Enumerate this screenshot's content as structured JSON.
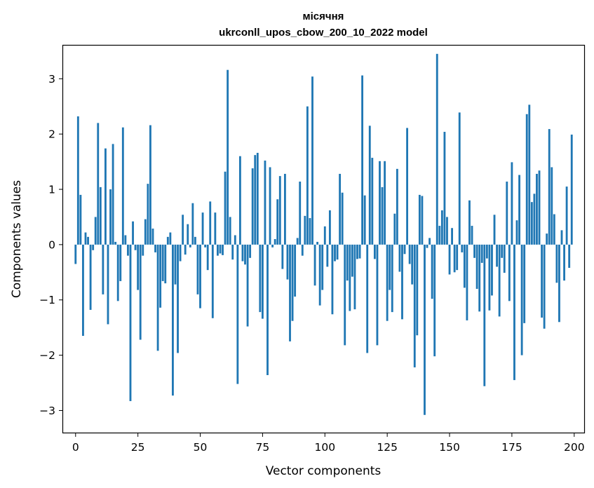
{
  "chart_data": {
    "type": "bar",
    "title": "місячня",
    "subtitle": "ukrconll_upos_cbow_200_10_2022 model",
    "xlabel": "Vector components",
    "ylabel": "Components values",
    "xlim": [
      -5,
      204
    ],
    "ylim": [
      -3.4,
      3.6
    ],
    "xticks": [
      0,
      25,
      50,
      75,
      100,
      125,
      150,
      175,
      200
    ],
    "yticks": [
      -3,
      -2,
      -1,
      0,
      1,
      2,
      3
    ],
    "xtick_labels": [
      "0",
      "25",
      "50",
      "75",
      "100",
      "125",
      "150",
      "175",
      "200"
    ],
    "ytick_labels": [
      "−3",
      "−2",
      "−1",
      "0",
      "1",
      "2",
      "3"
    ],
    "grid": false,
    "bar_color": "#1f77b4",
    "x": [
      0,
      1,
      2,
      3,
      4,
      5,
      6,
      7,
      8,
      9,
      10,
      11,
      12,
      13,
      14,
      15,
      16,
      17,
      18,
      19,
      20,
      21,
      22,
      23,
      24,
      25,
      26,
      27,
      28,
      29,
      30,
      31,
      32,
      33,
      34,
      35,
      36,
      37,
      38,
      39,
      40,
      41,
      42,
      43,
      44,
      45,
      46,
      47,
      48,
      49,
      50,
      51,
      52,
      53,
      54,
      55,
      56,
      57,
      58,
      59,
      60,
      61,
      62,
      63,
      64,
      65,
      66,
      67,
      68,
      69,
      70,
      71,
      72,
      73,
      74,
      75,
      76,
      77,
      78,
      79,
      80,
      81,
      82,
      83,
      84,
      85,
      86,
      87,
      88,
      89,
      90,
      91,
      92,
      93,
      94,
      95,
      96,
      97,
      98,
      99,
      100,
      101,
      102,
      103,
      104,
      105,
      106,
      107,
      108,
      109,
      110,
      111,
      112,
      113,
      114,
      115,
      116,
      117,
      118,
      119,
      120,
      121,
      122,
      123,
      124,
      125,
      126,
      127,
      128,
      129,
      130,
      131,
      132,
      133,
      134,
      135,
      136,
      137,
      138,
      139,
      140,
      141,
      142,
      143,
      144,
      145,
      146,
      147,
      148,
      149,
      150,
      151,
      152,
      153,
      154,
      155,
      156,
      157,
      158,
      159,
      160,
      161,
      162,
      163,
      164,
      165,
      166,
      167,
      168,
      169,
      170,
      171,
      172,
      173,
      174,
      175,
      176,
      177,
      178,
      179,
      180,
      181,
      182,
      183,
      184,
      185,
      186,
      187,
      188,
      189,
      190,
      191,
      192,
      193,
      194,
      195,
      196,
      197,
      198,
      199
    ],
    "values": [
      -0.35,
      2.32,
      0.9,
      -1.65,
      0.22,
      0.14,
      -1.18,
      -0.1,
      0.5,
      2.2,
      1.04,
      -0.9,
      1.74,
      -1.44,
      1.0,
      1.82,
      0.05,
      -1.02,
      -0.66,
      2.12,
      0.17,
      -0.2,
      -2.83,
      0.42,
      -0.1,
      -0.82,
      -1.72,
      -0.2,
      0.46,
      1.1,
      2.16,
      0.29,
      -0.14,
      -1.92,
      -1.14,
      -0.66,
      -0.7,
      0.14,
      0.22,
      -2.73,
      -0.72,
      -1.96,
      -0.3,
      0.54,
      -0.18,
      0.37,
      -0.05,
      0.75,
      0.14,
      -0.9,
      -1.15,
      0.58,
      -0.05,
      -0.46,
      0.78,
      -1.33,
      0.58,
      -0.2,
      -0.16,
      -0.19,
      1.32,
      3.16,
      0.5,
      -0.27,
      0.17,
      -2.52,
      1.6,
      -0.3,
      -0.36,
      -1.48,
      -0.24,
      1.38,
      1.62,
      1.66,
      -1.22,
      -1.34,
      1.52,
      -2.36,
      1.4,
      -0.05,
      0.1,
      0.82,
      1.24,
      -0.44,
      1.28,
      -0.63,
      -1.75,
      -1.38,
      -0.94,
      0.12,
      1.14,
      -0.2,
      0.52,
      2.5,
      0.48,
      3.04,
      -0.74,
      0.05,
      -1.1,
      -0.82,
      0.33,
      -0.4,
      0.62,
      -1.26,
      -0.3,
      -0.27,
      1.28,
      0.94,
      -1.82,
      -0.65,
      -1.2,
      -0.58,
      -1.17,
      -0.26,
      -0.25,
      3.06,
      0.89,
      -1.96,
      2.15,
      1.57,
      -0.26,
      -1.82,
      1.51,
      1.04,
      1.51,
      -1.38,
      -0.82,
      -1.22,
      0.56,
      1.37,
      -0.49,
      -1.35,
      -0.17,
      2.11,
      -0.35,
      -0.72,
      -2.22,
      -1.64,
      0.9,
      0.88,
      -3.08,
      -0.06,
      0.12,
      -0.98,
      -2.02,
      3.45,
      0.34,
      0.62,
      2.04,
      0.5,
      -0.54,
      0.3,
      -0.5,
      -0.46,
      2.39,
      -0.14,
      -0.78,
      -1.37,
      0.8,
      0.34,
      -0.24,
      -0.8,
      -1.21,
      -0.33,
      -2.56,
      -0.25,
      -1.19,
      -0.92,
      0.54,
      -0.4,
      -1.3,
      -0.24,
      -0.51,
      1.14,
      -1.02,
      1.49,
      -2.45,
      0.44,
      1.26,
      -2.0,
      -1.42,
      2.36,
      2.53,
      0.77,
      0.92,
      1.28,
      1.34,
      -1.32,
      -1.52,
      0.2,
      2.09,
      1.4,
      0.55,
      -0.69,
      -1.4,
      0.26,
      -0.65,
      1.05,
      -0.42,
      1.99
    ]
  }
}
